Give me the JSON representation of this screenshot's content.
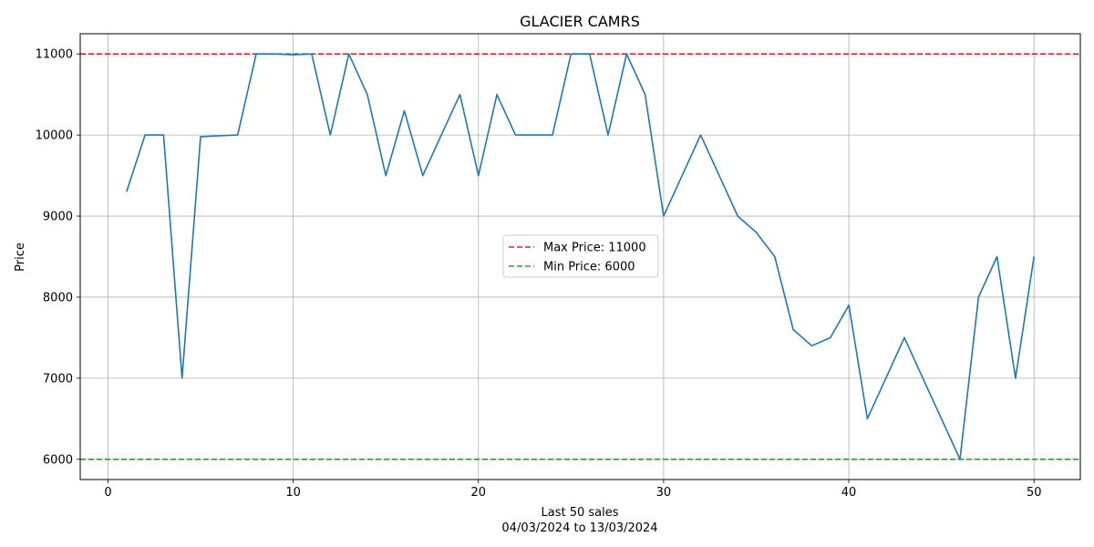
{
  "chart_data": {
    "type": "line",
    "title": "GLACIER CAMRS",
    "xlabel": "Last 50 sales",
    "xlabel_line2": "04/03/2024 to 13/03/2024",
    "ylabel": "Price",
    "xlim": [
      -1.5,
      52.5
    ],
    "ylim": [
      5750,
      11250
    ],
    "xticks": [
      0,
      10,
      20,
      30,
      40,
      50
    ],
    "xtick_labels": [
      "0",
      "10",
      "20",
      "30",
      "40",
      "50"
    ],
    "yticks": [
      6000,
      7000,
      8000,
      9000,
      10000,
      11000
    ],
    "ytick_labels": [
      "6000",
      "7000",
      "8000",
      "9000",
      "10000",
      "11000"
    ],
    "grid": true,
    "legend_position": "center-right",
    "series": [
      {
        "color": "#1f77b4",
        "x": [
          1,
          2,
          3,
          4,
          5,
          6,
          7,
          8,
          9,
          10,
          11,
          12,
          13,
          14,
          15,
          16,
          17,
          18,
          19,
          20,
          21,
          22,
          23,
          24,
          25,
          26,
          27,
          28,
          29,
          30,
          31,
          32,
          33,
          34,
          35,
          36,
          37,
          38,
          39,
          40,
          41,
          42,
          43,
          44,
          45,
          46,
          47,
          48,
          49,
          50
        ],
        "y": [
          9300,
          10000,
          10000,
          7000,
          9980,
          9990,
          10000,
          11000,
          11000,
          10990,
          11000,
          10000,
          11000,
          10500,
          9500,
          10300,
          9500,
          10000,
          10500,
          9500,
          10500,
          10000,
          10000,
          10000,
          11000,
          11000,
          10000,
          11000,
          10500,
          9000,
          9500,
          10000,
          9500,
          9000,
          8800,
          8500,
          7600,
          7400,
          7500,
          7900,
          6500,
          7000,
          7500,
          7000,
          6500,
          6000,
          8000,
          8500,
          7000,
          8500
        ]
      }
    ],
    "reference_lines": [
      {
        "name": "Max Price: 11000",
        "value": 11000,
        "color": "#d62728",
        "style": "dashed"
      },
      {
        "name": "Min Price: 6000",
        "value": 6000,
        "color": "#2ca02c",
        "style": "dashed"
      }
    ]
  }
}
